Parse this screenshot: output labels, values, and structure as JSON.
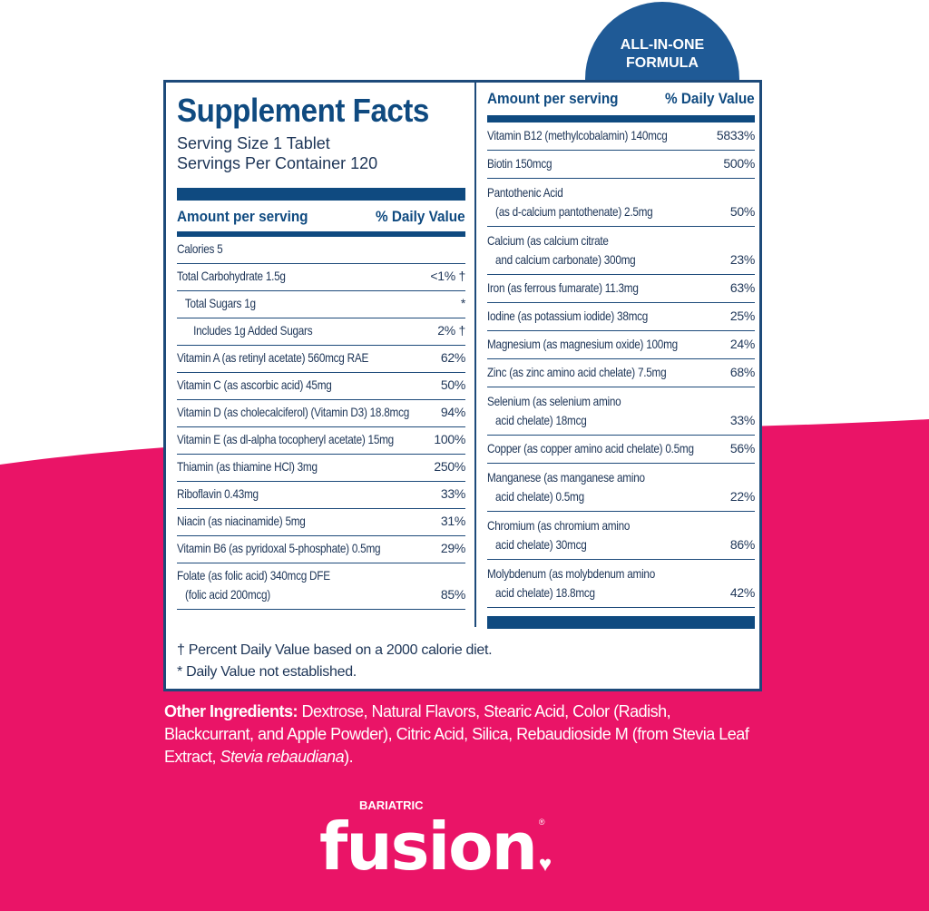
{
  "colors": {
    "navy": "#0f4a80",
    "pink": "#ea1467",
    "badge": "#1f5a96"
  },
  "badge": {
    "line1": "ALL-IN-ONE",
    "line2": "FORMULA"
  },
  "title": "Supplement Facts",
  "serving_size": "Serving Size 1 Tablet",
  "servings_per_container": "Servings Per Container 120",
  "header": {
    "amount": "Amount per serving",
    "dv": "% Daily Value"
  },
  "left_rows": [
    {
      "name": "Calories 5",
      "dv": ""
    },
    {
      "name": "Total Carbohydrate 1.5g",
      "dv": "<1% †"
    },
    {
      "name": "   Total Sugars 1g",
      "dv": "*"
    },
    {
      "name": "      Includes 1g Added Sugars",
      "dv": "2% †"
    },
    {
      "name": "Vitamin A (as retinyl acetate) 560mcg RAE",
      "dv": "62%"
    },
    {
      "name": "Vitamin C (as ascorbic acid) 45mg",
      "dv": "50%"
    },
    {
      "name": "Vitamin D (as cholecalciferol) (Vitamin D3) 18.8mcg",
      "dv": "94%"
    },
    {
      "name": "Vitamin E (as dl-alpha tocopheryl acetate) 15mg",
      "dv": "100%"
    },
    {
      "name": "Thiamin (as thiamine HCl) 3mg",
      "dv": "250%"
    },
    {
      "name": "Riboflavin 0.43mg",
      "dv": "33%"
    },
    {
      "name": "Niacin (as niacinamide) 5mg",
      "dv": "31%"
    },
    {
      "name": "Vitamin B6 (as pyridoxal 5-phosphate) 0.5mg",
      "dv": "29%"
    },
    {
      "name": "Folate (as folic acid) 340mcg DFE\n   (folic acid 200mcg)",
      "dv": "85%"
    }
  ],
  "right_rows": [
    {
      "name": "Vitamin B12 (methylcobalamin) 140mcg",
      "dv": "5833%"
    },
    {
      "name": "Biotin 150mcg",
      "dv": "500%"
    },
    {
      "name": "Pantothenic Acid\n   (as d-calcium pantothenate) 2.5mg",
      "dv": "50%"
    },
    {
      "name": "Calcium (as calcium citrate\n   and calcium carbonate) 300mg",
      "dv": "23%"
    },
    {
      "name": "Iron (as ferrous fumarate) 11.3mg",
      "dv": "63%"
    },
    {
      "name": "Iodine (as potassium iodide) 38mcg",
      "dv": "25%"
    },
    {
      "name": "Magnesium (as magnesium oxide) 100mg",
      "dv": "24%"
    },
    {
      "name": "Zinc (as zinc amino acid chelate) 7.5mg",
      "dv": "68%"
    },
    {
      "name": "Selenium (as selenium amino\n   acid chelate) 18mcg",
      "dv": "33%"
    },
    {
      "name": "Copper (as copper amino acid chelate) 0.5mg",
      "dv": "56%"
    },
    {
      "name": "Manganese (as manganese amino\n   acid chelate) 0.5mg",
      "dv": "22%"
    },
    {
      "name": "Chromium (as chromium amino\n   acid chelate) 30mcg",
      "dv": "86%"
    },
    {
      "name": "Molybdenum (as molybdenum amino\n   acid chelate) 18.8mcg",
      "dv": "42%"
    }
  ],
  "footnotes": [
    "† Percent Daily Value based on a 2000 calorie diet.",
    "* Daily Value not established."
  ],
  "ingredients": {
    "label": "Other Ingredients:",
    "text": " Dextrose, Natural Flavors, Stearic Acid, Color (Radish, Blackcurrant, and Apple Powder), Citric Acid, Silica, Rebaudioside M (from Stevia Leaf Extract, ",
    "italic": "Stevia rebaudiana",
    "end": ")."
  },
  "logo": {
    "small": "BARIATRIC",
    "big": "fusion",
    "reg": "®"
  }
}
